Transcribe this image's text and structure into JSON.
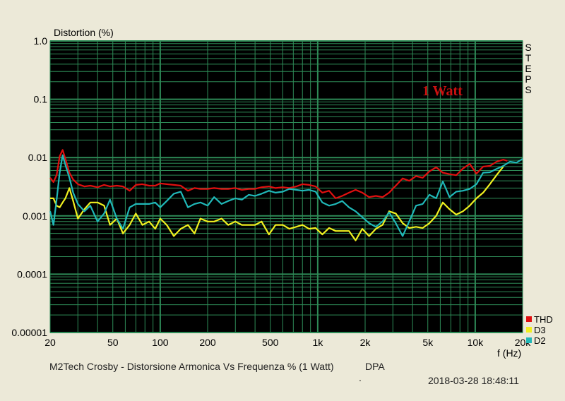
{
  "chart_data": {
    "type": "line",
    "title": "",
    "ylabel": "Distortion (%)",
    "xlabel": "f (Hz)",
    "x_scale": "log",
    "y_scale": "log",
    "xlim": [
      20,
      20000
    ],
    "ylim": [
      1e-05,
      1
    ],
    "grid": true,
    "x_ticks": [
      {
        "value": 20,
        "label": "20"
      },
      {
        "value": 50,
        "label": "50"
      },
      {
        "value": 100,
        "label": "100"
      },
      {
        "value": 200,
        "label": "200"
      },
      {
        "value": 500,
        "label": "500"
      },
      {
        "value": 1000,
        "label": "1k"
      },
      {
        "value": 2000,
        "label": "2k"
      },
      {
        "value": 5000,
        "label": "5k"
      },
      {
        "value": 10000,
        "label": "10k"
      },
      {
        "value": 20000,
        "label": "20k"
      }
    ],
    "y_ticks": [
      {
        "value": 1,
        "label": "1.0"
      },
      {
        "value": 0.1,
        "label": "0.1"
      },
      {
        "value": 0.01,
        "label": "0.01"
      },
      {
        "value": 0.001,
        "label": "0.001"
      },
      {
        "value": 0.0001,
        "label": "0.0001"
      },
      {
        "value": 1e-05,
        "label": "0.00001"
      }
    ],
    "annotation": {
      "text": "1 Watt",
      "color": "#cc1111"
    },
    "side_label": [
      "S",
      "T",
      "E",
      "P",
      "S"
    ],
    "legend_position": "bottom-right",
    "background_color": "#000000",
    "grid_color": "#2e8b57",
    "series": [
      {
        "name": "THD",
        "color": "#e01010",
        "points": [
          [
            20,
            0.0045
          ],
          [
            21,
            0.0038
          ],
          [
            22,
            0.005
          ],
          [
            23,
            0.0105
          ],
          [
            24,
            0.0135
          ],
          [
            25,
            0.0095
          ],
          [
            26.5,
            0.0055
          ],
          [
            28,
            0.0042
          ],
          [
            30,
            0.0035
          ],
          [
            33,
            0.0032
          ],
          [
            36,
            0.0033
          ],
          [
            40,
            0.0031
          ],
          [
            44,
            0.0034
          ],
          [
            48,
            0.0032
          ],
          [
            53,
            0.0033
          ],
          [
            58,
            0.0032
          ],
          [
            64,
            0.0027
          ],
          [
            70,
            0.0034
          ],
          [
            77,
            0.0035
          ],
          [
            85,
            0.0033
          ],
          [
            93,
            0.0033
          ],
          [
            100,
            0.0036
          ],
          [
            110,
            0.0035
          ],
          [
            122,
            0.0034
          ],
          [
            135,
            0.0033
          ],
          [
            150,
            0.0027
          ],
          [
            165,
            0.003
          ],
          [
            180,
            0.0029
          ],
          [
            200,
            0.0029
          ],
          [
            220,
            0.003
          ],
          [
            245,
            0.0029
          ],
          [
            270,
            0.0029
          ],
          [
            300,
            0.003
          ],
          [
            330,
            0.0028
          ],
          [
            365,
            0.0029
          ],
          [
            400,
            0.0029
          ],
          [
            440,
            0.0031
          ],
          [
            490,
            0.0032
          ],
          [
            540,
            0.003
          ],
          [
            600,
            0.0031
          ],
          [
            660,
            0.003
          ],
          [
            730,
            0.0032
          ],
          [
            800,
            0.0035
          ],
          [
            880,
            0.0034
          ],
          [
            970,
            0.0032
          ],
          [
            1070,
            0.0025
          ],
          [
            1180,
            0.0027
          ],
          [
            1300,
            0.002
          ],
          [
            1430,
            0.0022
          ],
          [
            1580,
            0.0025
          ],
          [
            1740,
            0.0028
          ],
          [
            1920,
            0.0025
          ],
          [
            2120,
            0.0021
          ],
          [
            2340,
            0.0022
          ],
          [
            2580,
            0.0021
          ],
          [
            2840,
            0.0025
          ],
          [
            3130,
            0.0033
          ],
          [
            3460,
            0.0044
          ],
          [
            3810,
            0.004
          ],
          [
            4210,
            0.0048
          ],
          [
            4640,
            0.0045
          ],
          [
            5120,
            0.0058
          ],
          [
            5650,
            0.0068
          ],
          [
            6230,
            0.0055
          ],
          [
            6870,
            0.0052
          ],
          [
            7580,
            0.005
          ],
          [
            8360,
            0.0065
          ],
          [
            9230,
            0.0078
          ],
          [
            10180,
            0.0053
          ],
          [
            11230,
            0.007
          ],
          [
            12390,
            0.0072
          ],
          [
            13660,
            0.0085
          ],
          [
            15070,
            0.0092
          ],
          [
            16000,
            0.0088
          ]
        ]
      },
      {
        "name": "D3",
        "color": "#f0f020",
        "points": [
          [
            20,
            0.002
          ],
          [
            21,
            0.002
          ],
          [
            22,
            0.0015
          ],
          [
            23,
            0.0014
          ],
          [
            24,
            0.0017
          ],
          [
            25,
            0.002
          ],
          [
            26.5,
            0.003
          ],
          [
            28,
            0.0018
          ],
          [
            30,
            0.0009
          ],
          [
            33,
            0.0013
          ],
          [
            36,
            0.0017
          ],
          [
            40,
            0.0017
          ],
          [
            44,
            0.0015
          ],
          [
            48,
            0.0007
          ],
          [
            53,
            0.0009
          ],
          [
            58,
            0.0005
          ],
          [
            64,
            0.0007
          ],
          [
            70,
            0.0011
          ],
          [
            77,
            0.0007
          ],
          [
            85,
            0.0008
          ],
          [
            93,
            0.0006
          ],
          [
            100,
            0.0009
          ],
          [
            110,
            0.0007
          ],
          [
            122,
            0.00045
          ],
          [
            135,
            0.0006
          ],
          [
            150,
            0.0007
          ],
          [
            165,
            0.0005
          ],
          [
            180,
            0.0009
          ],
          [
            200,
            0.0008
          ],
          [
            220,
            0.0008
          ],
          [
            245,
            0.0009
          ],
          [
            270,
            0.0007
          ],
          [
            300,
            0.0008
          ],
          [
            330,
            0.0007
          ],
          [
            365,
            0.0007
          ],
          [
            400,
            0.0007
          ],
          [
            440,
            0.0008
          ],
          [
            490,
            0.00048
          ],
          [
            540,
            0.0007
          ],
          [
            600,
            0.0007
          ],
          [
            660,
            0.0006
          ],
          [
            730,
            0.00065
          ],
          [
            800,
            0.0007
          ],
          [
            880,
            0.0006
          ],
          [
            970,
            0.00062
          ],
          [
            1070,
            0.00048
          ],
          [
            1180,
            0.00062
          ],
          [
            1300,
            0.00055
          ],
          [
            1430,
            0.00055
          ],
          [
            1580,
            0.00055
          ],
          [
            1740,
            0.00038
          ],
          [
            1920,
            0.0006
          ],
          [
            2120,
            0.00045
          ],
          [
            2340,
            0.0006
          ],
          [
            2580,
            0.0007
          ],
          [
            2840,
            0.0012
          ],
          [
            3130,
            0.0011
          ],
          [
            3460,
            0.00075
          ],
          [
            3810,
            0.00062
          ],
          [
            4210,
            0.00065
          ],
          [
            4640,
            0.00062
          ],
          [
            5120,
            0.00075
          ],
          [
            5650,
            0.001
          ],
          [
            6230,
            0.0017
          ],
          [
            6870,
            0.0013
          ],
          [
            7580,
            0.00105
          ],
          [
            8360,
            0.0012
          ],
          [
            9230,
            0.0015
          ],
          [
            10180,
            0.002
          ],
          [
            11230,
            0.0025
          ],
          [
            12390,
            0.0035
          ],
          [
            13660,
            0.005
          ],
          [
            15070,
            0.007
          ]
        ]
      },
      {
        "name": "D2",
        "color": "#20b8b8",
        "points": [
          [
            20,
            0.0012
          ],
          [
            21,
            0.0007
          ],
          [
            22,
            0.0019
          ],
          [
            23,
            0.0055
          ],
          [
            24,
            0.011
          ],
          [
            25,
            0.0075
          ],
          [
            26.5,
            0.0045
          ],
          [
            28,
            0.0025
          ],
          [
            30,
            0.0016
          ],
          [
            33,
            0.0012
          ],
          [
            36,
            0.0015
          ],
          [
            40,
            0.0008
          ],
          [
            44,
            0.0011
          ],
          [
            48,
            0.0019
          ],
          [
            53,
            0.0009
          ],
          [
            58,
            0.0006
          ],
          [
            64,
            0.0014
          ],
          [
            70,
            0.0016
          ],
          [
            77,
            0.0016
          ],
          [
            85,
            0.0016
          ],
          [
            93,
            0.0017
          ],
          [
            100,
            0.0014
          ],
          [
            110,
            0.0018
          ],
          [
            122,
            0.0024
          ],
          [
            135,
            0.0026
          ],
          [
            150,
            0.0014
          ],
          [
            165,
            0.0016
          ],
          [
            180,
            0.0017
          ],
          [
            200,
            0.0015
          ],
          [
            220,
            0.0021
          ],
          [
            245,
            0.0016
          ],
          [
            270,
            0.0018
          ],
          [
            300,
            0.002
          ],
          [
            330,
            0.0019
          ],
          [
            365,
            0.0023
          ],
          [
            400,
            0.0022
          ],
          [
            440,
            0.0024
          ],
          [
            490,
            0.0027
          ],
          [
            540,
            0.0025
          ],
          [
            600,
            0.0026
          ],
          [
            660,
            0.0029
          ],
          [
            730,
            0.0028
          ],
          [
            800,
            0.0027
          ],
          [
            880,
            0.0028
          ],
          [
            970,
            0.0026
          ],
          [
            1070,
            0.0017
          ],
          [
            1180,
            0.0015
          ],
          [
            1300,
            0.0016
          ],
          [
            1430,
            0.0018
          ],
          [
            1580,
            0.0014
          ],
          [
            1740,
            0.0012
          ],
          [
            1920,
            0.00095
          ],
          [
            2120,
            0.00075
          ],
          [
            2340,
            0.00065
          ],
          [
            2580,
            0.0008
          ],
          [
            2840,
            0.00115
          ],
          [
            3130,
            0.00075
          ],
          [
            3460,
            0.00045
          ],
          [
            3810,
            0.0008
          ],
          [
            4210,
            0.0015
          ],
          [
            4640,
            0.0016
          ],
          [
            5120,
            0.0023
          ],
          [
            5650,
            0.002
          ],
          [
            6230,
            0.0039
          ],
          [
            6870,
            0.0021
          ],
          [
            7580,
            0.0026
          ],
          [
            8360,
            0.0027
          ],
          [
            9230,
            0.0029
          ],
          [
            10180,
            0.0035
          ],
          [
            11230,
            0.0055
          ],
          [
            12390,
            0.0056
          ],
          [
            13660,
            0.0064
          ],
          [
            15070,
            0.0072
          ],
          [
            16600,
            0.0085
          ],
          [
            18300,
            0.0082
          ],
          [
            20000,
            0.0095
          ]
        ]
      }
    ]
  },
  "footer": {
    "caption": "M2Tech Crosby - Distorsione Armonica Vs Frequenza % (1 Watt)",
    "source": "DPA",
    "dot": ".",
    "timestamp": "2018-03-28 18:48:11"
  }
}
